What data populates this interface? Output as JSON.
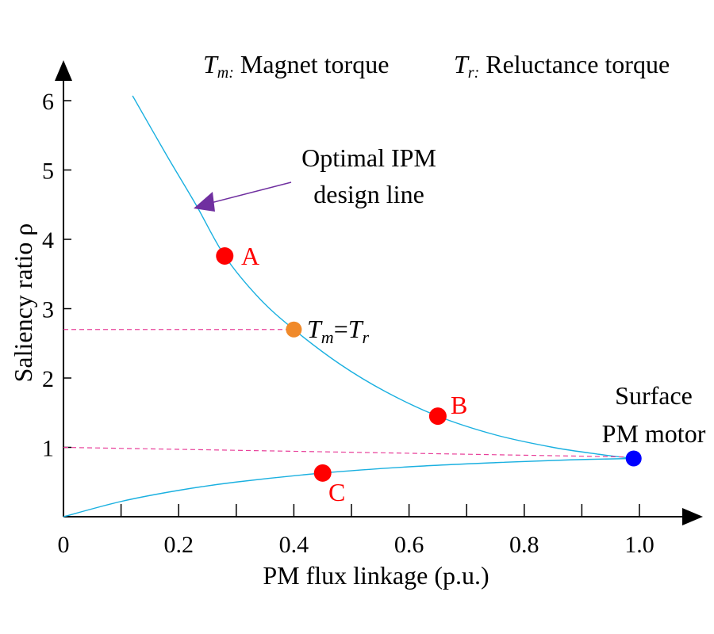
{
  "chart_data": {
    "type": "line",
    "title": "",
    "xlabel": "PM flux linkage (p.u.)",
    "ylabel": "Saliency ratio ρ",
    "xlim": [
      0,
      1.1
    ],
    "ylim": [
      0,
      6.5
    ],
    "x_ticks": [
      0,
      0.2,
      0.4,
      0.6,
      0.8,
      1.0
    ],
    "x_tick_labels": [
      "0",
      "0.2",
      "0.4",
      "0.6",
      "0.8",
      "1.0"
    ],
    "x_minor_ticks": [
      0.1,
      0.3,
      0.5,
      0.7,
      0.9
    ],
    "y_ticks": [
      1,
      2,
      3,
      4,
      5,
      6
    ],
    "y_tick_labels": [
      "1",
      "2",
      "3",
      "4",
      "5",
      "6"
    ],
    "grid": false,
    "legend": {
      "placement": "top-right",
      "entries": [
        {
          "symbol": "T",
          "subscript": "m:",
          "text": "Magnet torque"
        },
        {
          "symbol": "T",
          "subscript": "r:",
          "text": "Reluctance torque"
        }
      ]
    },
    "series": [
      {
        "name": "Optimal IPM design line (upper branch)",
        "color": "#1ab0e0",
        "points": [
          [
            0.12,
            6.07
          ],
          [
            0.18,
            5.2
          ],
          [
            0.23,
            4.5
          ],
          [
            0.28,
            3.76
          ],
          [
            0.34,
            3.15
          ],
          [
            0.4,
            2.7
          ],
          [
            0.48,
            2.2
          ],
          [
            0.56,
            1.8
          ],
          [
            0.65,
            1.45
          ],
          [
            0.75,
            1.18
          ],
          [
            0.85,
            1.0
          ],
          [
            0.93,
            0.9
          ],
          [
            0.99,
            0.84
          ]
        ]
      },
      {
        "name": "Optimal IPM design line (lower branch)",
        "color": "#1ab0e0",
        "points": [
          [
            0.0,
            0.0
          ],
          [
            0.1,
            0.22
          ],
          [
            0.2,
            0.38
          ],
          [
            0.3,
            0.5
          ],
          [
            0.45,
            0.63
          ],
          [
            0.6,
            0.72
          ],
          [
            0.75,
            0.78
          ],
          [
            0.88,
            0.82
          ],
          [
            0.99,
            0.84
          ]
        ]
      },
      {
        "name": "Tm=Tr reference",
        "color": "#e8409a",
        "dashed": true,
        "points": [
          [
            0.0,
            2.7
          ],
          [
            0.4,
            2.7
          ]
        ]
      },
      {
        "name": "Unity saliency reference",
        "color": "#e8409a",
        "dashed": true,
        "points": [
          [
            0.0,
            1.0
          ],
          [
            0.99,
            0.86
          ]
        ]
      }
    ],
    "markers": [
      {
        "label": "A",
        "x": 0.28,
        "y": 3.76,
        "color": "#ff0000"
      },
      {
        "label": "B",
        "x": 0.65,
        "y": 1.45,
        "color": "#ff0000"
      },
      {
        "label": "C",
        "x": 0.45,
        "y": 0.63,
        "color": "#ff0000"
      },
      {
        "label": "Tm=Tr",
        "x": 0.4,
        "y": 2.7,
        "color": "#f0892a"
      },
      {
        "label": "Surface PM motor",
        "x": 0.99,
        "y": 0.84,
        "color": "#0000ff"
      }
    ],
    "annotations": [
      {
        "text_lines": [
          "Optimal IPM",
          "design line"
        ],
        "arrow_color": "#7030a0",
        "points_to": [
          0.23,
          4.5
        ]
      },
      {
        "text": "Tm=Tr",
        "main": "T",
        "sub1": "m",
        "eq": "=",
        "main2": "T",
        "sub2": "r"
      },
      {
        "text_lines": [
          "Surface",
          "PM motor"
        ]
      }
    ]
  }
}
